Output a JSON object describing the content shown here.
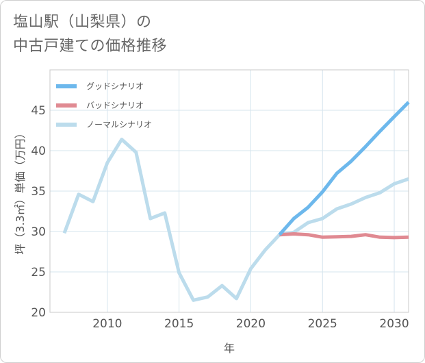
{
  "title": {
    "line1": "塩山駅（山梨県）の",
    "line2": "中古戸建ての価格推移"
  },
  "colors": {
    "good": "#6db8ec",
    "bad": "#e08a92",
    "normal": "#bcdcec",
    "grid": "#d6e4ee",
    "frame": "#c8c8c8"
  },
  "chart_data": {
    "type": "line",
    "title": "塩山駅（山梨県）の中古戸建ての価格推移",
    "xlabel": "年",
    "ylabel": "坪（3.3㎡）単価（万円）",
    "xlim": [
      2006,
      2031
    ],
    "ylim": [
      20,
      50
    ],
    "xticks": [
      2010,
      2015,
      2020,
      2025,
      2030
    ],
    "yticks": [
      20,
      25,
      30,
      35,
      40,
      45
    ],
    "grid": true,
    "legend_position": "top-left",
    "series": [
      {
        "name": "グッドシナリオ",
        "color": "#6db8ec",
        "x": [
          2022,
          2023,
          2024,
          2025,
          2026,
          2027,
          2028,
          2029,
          2030,
          2031
        ],
        "y": [
          29.6,
          31.6,
          33.0,
          34.9,
          37.2,
          38.7,
          40.5,
          42.4,
          44.2,
          46.0
        ]
      },
      {
        "name": "バッドシナリオ",
        "color": "#e08a92",
        "x": [
          2022,
          2023,
          2024,
          2025,
          2026,
          2027,
          2028,
          2029,
          2030,
          2031
        ],
        "y": [
          29.6,
          29.7,
          29.6,
          29.3,
          29.35,
          29.4,
          29.6,
          29.3,
          29.25,
          29.3
        ]
      },
      {
        "name": "ノーマルシナリオ",
        "color": "#bcdcec",
        "x": [
          2007,
          2008,
          2009,
          2010,
          2011,
          2012,
          2013,
          2014,
          2015,
          2016,
          2017,
          2018,
          2019,
          2020,
          2021,
          2022,
          2023,
          2024,
          2025,
          2026,
          2027,
          2028,
          2029,
          2030,
          2031
        ],
        "y": [
          29.8,
          34.6,
          33.7,
          38.5,
          41.4,
          39.8,
          31.6,
          32.3,
          24.9,
          21.5,
          21.9,
          23.3,
          21.7,
          25.4,
          27.7,
          29.6,
          29.9,
          31.1,
          31.6,
          32.8,
          33.4,
          34.2,
          34.8,
          35.9,
          36.5
        ]
      }
    ]
  }
}
